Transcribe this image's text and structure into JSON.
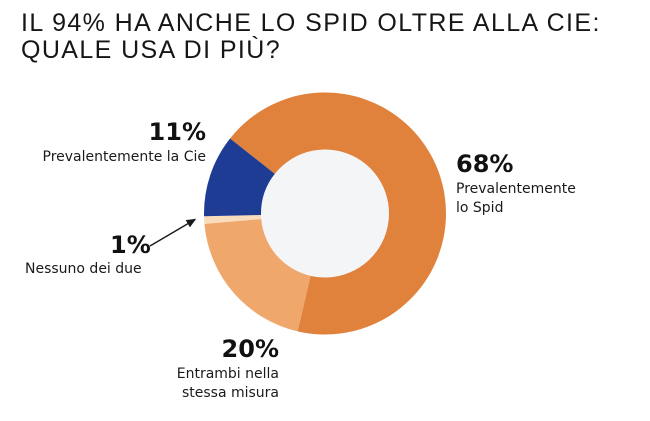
{
  "title": {
    "line1": "IL 94% HA ANCHE LO SPID OLTRE ALLA CIE:",
    "line2": "QUALE USA DI PIÙ?"
  },
  "chart_data": {
    "type": "pie",
    "variant": "donut",
    "title": "IL 94% HA ANCHE LO SPID OLTRE ALLA CIE: QUALE USA DI PIÙ?",
    "start_angle_deg": -51.7,
    "clockwise": true,
    "inner_radius_ratio": 0.53,
    "hole_color": "#F4F5F6",
    "background": "#FFFFFF",
    "legend_position": "callouts",
    "segments": [
      {
        "label": "Prevalentemente lo Spid",
        "value": 68,
        "color": "#E0813C"
      },
      {
        "label": "Entrambi nella stessa misura",
        "value": 20,
        "color": "#F0A76C"
      },
      {
        "label": "Nessuno dei due",
        "value": 1,
        "color": "#F8DCBC"
      },
      {
        "label": "Prevalentemente la Cie",
        "value": 11,
        "color": "#1E3C94"
      }
    ]
  },
  "callouts": {
    "spid": {
      "pct": "68%",
      "line1": "Prevalentemente",
      "line2": "lo Spid"
    },
    "entrambi": {
      "pct": "20%",
      "line1": "Entrambi nella",
      "line2": "stessa misura"
    },
    "nessuno": {
      "pct": "1%",
      "line1": "Nessuno dei due"
    },
    "cie": {
      "pct": "11%",
      "line1": "Prevalentemente la Cie"
    }
  }
}
